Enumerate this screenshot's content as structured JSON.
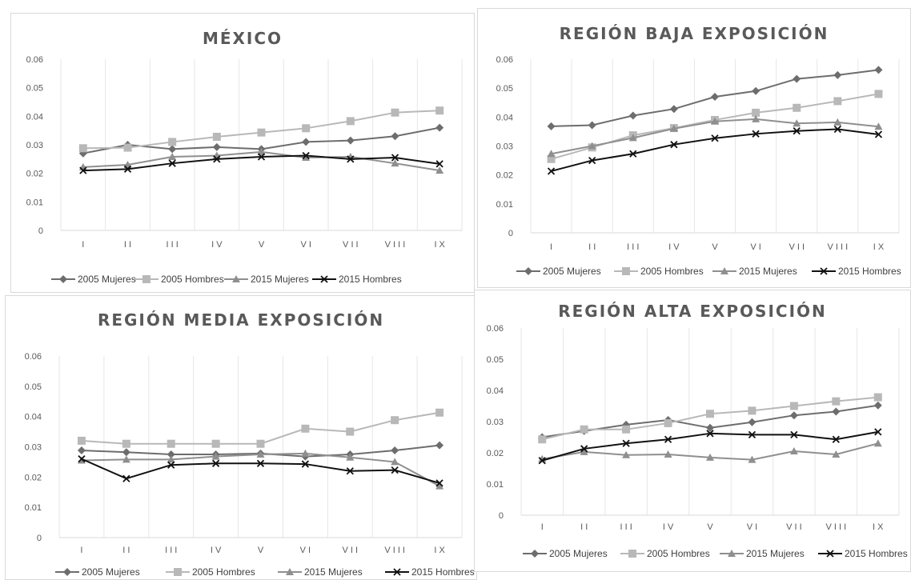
{
  "chart_data": [
    {
      "type": "line",
      "title": "MÉXICO",
      "categories": [
        "I",
        "II",
        "III",
        "IV",
        "V",
        "VI",
        "VII",
        "VIII",
        "IX"
      ],
      "ylim": [
        0,
        0.06
      ],
      "yticks": [
        "0",
        "0.01",
        "0.02",
        "0.03",
        "0.04",
        "0.05",
        "0.06"
      ],
      "grid": "vertical",
      "legend": "bottom",
      "series": [
        {
          "name": "2005 Mujeres",
          "marker": "diamond",
          "color": "#6d6d6d",
          "values": [
            0.027,
            0.03,
            0.0285,
            0.0292,
            0.0285,
            0.031,
            0.0315,
            0.033,
            0.036
          ]
        },
        {
          "name": "2005 Hombres",
          "marker": "square",
          "color": "#b8b8b8",
          "values": [
            0.0288,
            0.029,
            0.031,
            0.0328,
            0.0343,
            0.0358,
            0.0383,
            0.0413,
            0.042
          ]
        },
        {
          "name": "2015 Mujeres",
          "marker": "triangle",
          "color": "#8f8f8f",
          "values": [
            0.0222,
            0.023,
            0.0258,
            0.0262,
            0.0275,
            0.0255,
            0.0258,
            0.0235,
            0.021
          ]
        },
        {
          "name": "2015 Hombres",
          "marker": "x",
          "color": "#111111",
          "values": [
            0.021,
            0.0215,
            0.0235,
            0.025,
            0.0258,
            0.0262,
            0.025,
            0.0255,
            0.0233
          ]
        }
      ]
    },
    {
      "type": "line",
      "title": "REGIÓN BAJA EXPOSICIÓN",
      "categories": [
        "I",
        "II",
        "III",
        "IV",
        "V",
        "VI",
        "VII",
        "VIII",
        "IX"
      ],
      "ylim": [
        0,
        0.06
      ],
      "yticks": [
        "0",
        "0.01",
        "0.02",
        "0.03",
        "0.04",
        "0.05",
        "0.06"
      ],
      "grid": "vertical",
      "legend": "bottom",
      "series": [
        {
          "name": "2005 Mujeres",
          "marker": "diamond",
          "color": "#6d6d6d",
          "values": [
            0.0368,
            0.0372,
            0.0405,
            0.0428,
            0.047,
            0.049,
            0.0532,
            0.0545,
            0.0563
          ]
        },
        {
          "name": "2005 Hombres",
          "marker": "square",
          "color": "#b8b8b8",
          "values": [
            0.0255,
            0.0295,
            0.0337,
            0.0362,
            0.039,
            0.0415,
            0.0432,
            0.0455,
            0.048
          ]
        },
        {
          "name": "2015 Mujeres",
          "marker": "triangle",
          "color": "#8f8f8f",
          "values": [
            0.0273,
            0.03,
            0.0328,
            0.036,
            0.0385,
            0.0393,
            0.0378,
            0.0382,
            0.0367
          ]
        },
        {
          "name": "2015 Hombres",
          "marker": "x",
          "color": "#111111",
          "values": [
            0.0213,
            0.025,
            0.0273,
            0.0305,
            0.0327,
            0.0342,
            0.0352,
            0.0358,
            0.034
          ]
        }
      ]
    },
    {
      "type": "line",
      "title": "REGIÓN MEDIA EXPOSICIÓN",
      "categories": [
        "I",
        "II",
        "III",
        "IV",
        "V",
        "VI",
        "VII",
        "VIII",
        "IX"
      ],
      "ylim": [
        0,
        0.06
      ],
      "yticks": [
        "0",
        "0.01",
        "0.02",
        "0.03",
        "0.04",
        "0.05",
        "0.06"
      ],
      "grid": "vertical",
      "legend": "bottom",
      "series": [
        {
          "name": "2005 Mujeres",
          "marker": "diamond",
          "color": "#6d6d6d",
          "values": [
            0.0288,
            0.0282,
            0.0275,
            0.0275,
            0.0278,
            0.0268,
            0.0275,
            0.0288,
            0.0305
          ]
        },
        {
          "name": "2005 Hombres",
          "marker": "square",
          "color": "#b8b8b8",
          "values": [
            0.032,
            0.031,
            0.031,
            0.031,
            0.031,
            0.036,
            0.035,
            0.0388,
            0.0413
          ]
        },
        {
          "name": "2015 Mujeres",
          "marker": "triangle",
          "color": "#8f8f8f",
          "values": [
            0.0255,
            0.0258,
            0.0258,
            0.0268,
            0.0275,
            0.0278,
            0.0265,
            0.025,
            0.017
          ]
        },
        {
          "name": "2015 Hombres",
          "marker": "x",
          "color": "#111111",
          "values": [
            0.026,
            0.0195,
            0.024,
            0.0245,
            0.0245,
            0.0243,
            0.022,
            0.0223,
            0.018
          ]
        }
      ]
    },
    {
      "type": "line",
      "title": "REGIÓN ALTA EXPOSICIÓN",
      "categories": [
        "I",
        "II",
        "III",
        "IV",
        "V",
        "VI",
        "VII",
        "VIII",
        "IX"
      ],
      "ylim": [
        0,
        0.06
      ],
      "yticks": [
        "0",
        "0.01",
        "0.02",
        "0.03",
        "0.04",
        "0.05",
        "0.06"
      ],
      "grid": "vertical",
      "legend": "bottom",
      "series": [
        {
          "name": "2005 Mujeres",
          "marker": "diamond",
          "color": "#6d6d6d",
          "values": [
            0.025,
            0.027,
            0.029,
            0.0305,
            0.028,
            0.0298,
            0.032,
            0.0332,
            0.0352
          ]
        },
        {
          "name": "2005 Hombres",
          "marker": "square",
          "color": "#b8b8b8",
          "values": [
            0.0243,
            0.0275,
            0.0275,
            0.0295,
            0.0325,
            0.0335,
            0.035,
            0.0365,
            0.0378
          ]
        },
        {
          "name": "2015 Mujeres",
          "marker": "triangle",
          "color": "#8f8f8f",
          "values": [
            0.018,
            0.0203,
            0.0193,
            0.0195,
            0.0185,
            0.0178,
            0.0205,
            0.0195,
            0.023
          ]
        },
        {
          "name": "2015 Hombres",
          "marker": "x",
          "color": "#111111",
          "values": [
            0.0175,
            0.0213,
            0.023,
            0.0243,
            0.0262,
            0.0258,
            0.0258,
            0.0243,
            0.0267
          ]
        }
      ]
    }
  ]
}
